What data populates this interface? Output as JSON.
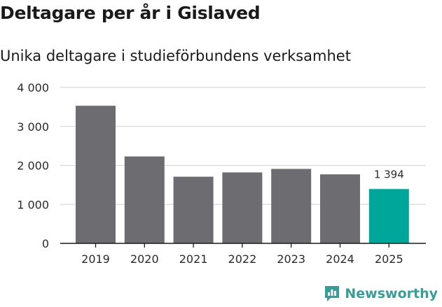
{
  "header": {
    "title": "Deltagare per år i Gislaved",
    "subtitle": "Unika deltagare i studieförbundens verksamhet"
  },
  "brand": {
    "name": "Newsworthy",
    "icon": "newsworthy-logo-icon"
  },
  "colors": {
    "bar": "#6d6c71",
    "highlight": "#00a699",
    "grid": "#d9d9d9",
    "axis": "#1a1a1a",
    "brand": "#3a9c95"
  },
  "chart_data": {
    "type": "bar",
    "title": "Deltagare per år i Gislaved",
    "subtitle": "Unika deltagare i studieförbundens verksamhet",
    "xlabel": "",
    "ylabel": "",
    "categories": [
      "2019",
      "2020",
      "2021",
      "2022",
      "2023",
      "2024",
      "2025"
    ],
    "values": [
      3530,
      2230,
      1710,
      1820,
      1910,
      1770,
      1394
    ],
    "highlight_index": 6,
    "data_labels": [
      {
        "index": 6,
        "text": "1 394"
      }
    ],
    "ylim": [
      0,
      4000
    ],
    "yticks": [
      {
        "value": 0,
        "label": "0"
      },
      {
        "value": 1000,
        "label": "1 000"
      },
      {
        "value": 2000,
        "label": "2 000"
      },
      {
        "value": 3000,
        "label": "3 000"
      },
      {
        "value": 4000,
        "label": "4 000"
      }
    ],
    "grid": true
  }
}
